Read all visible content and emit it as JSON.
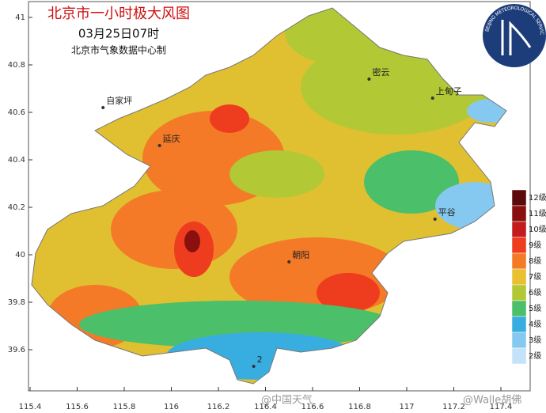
{
  "header": {
    "title": "北京市一小时极大风图",
    "subtitle": "03月25日07时",
    "credit": "北京市气象数据中心制"
  },
  "logo_text": "BEIJING METEOROLOGICAL SERVICE",
  "axes": {
    "lon": [
      115.4,
      115.6,
      115.8,
      116,
      116.2,
      116.4,
      116.6,
      116.8,
      117,
      117.2,
      117.4
    ],
    "lat": [
      39.6,
      39.8,
      40,
      40.2,
      40.4,
      40.6,
      40.8,
      41
    ]
  },
  "places": [
    {
      "label": "自家坪",
      "lon": 115.71,
      "lat": 40.62
    },
    {
      "label": "延庆",
      "lon": 115.95,
      "lat": 40.46
    },
    {
      "label": "密云",
      "lon": 116.84,
      "lat": 40.74
    },
    {
      "label": "上甸子",
      "lon": 117.11,
      "lat": 40.66
    },
    {
      "label": "平谷",
      "lon": 117.12,
      "lat": 40.15
    },
    {
      "label": "朝阳",
      "lon": 116.5,
      "lat": 39.97
    },
    {
      "label": "2",
      "lon": 116.35,
      "lat": 39.53
    }
  ],
  "legend": [
    {
      "label": "12级",
      "color": "#5c0a0a"
    },
    {
      "label": "11级",
      "color": "#8a1010"
    },
    {
      "label": "10级",
      "color": "#c41c1c"
    },
    {
      "label": "9级",
      "color": "#ee3c1e"
    },
    {
      "label": "8级",
      "color": "#f47a28"
    },
    {
      "label": "7级",
      "color": "#e8c030"
    },
    {
      "label": "6级",
      "color": "#b2c834"
    },
    {
      "label": "5级",
      "color": "#4cbf6a"
    },
    {
      "label": "4级",
      "color": "#38aee0"
    },
    {
      "label": "3级",
      "color": "#86c9f0"
    },
    {
      "label": "2级",
      "color": "#c4e2f8"
    }
  ],
  "watermarks": [
    "@中国天气",
    "@Walle胡佛"
  ]
}
